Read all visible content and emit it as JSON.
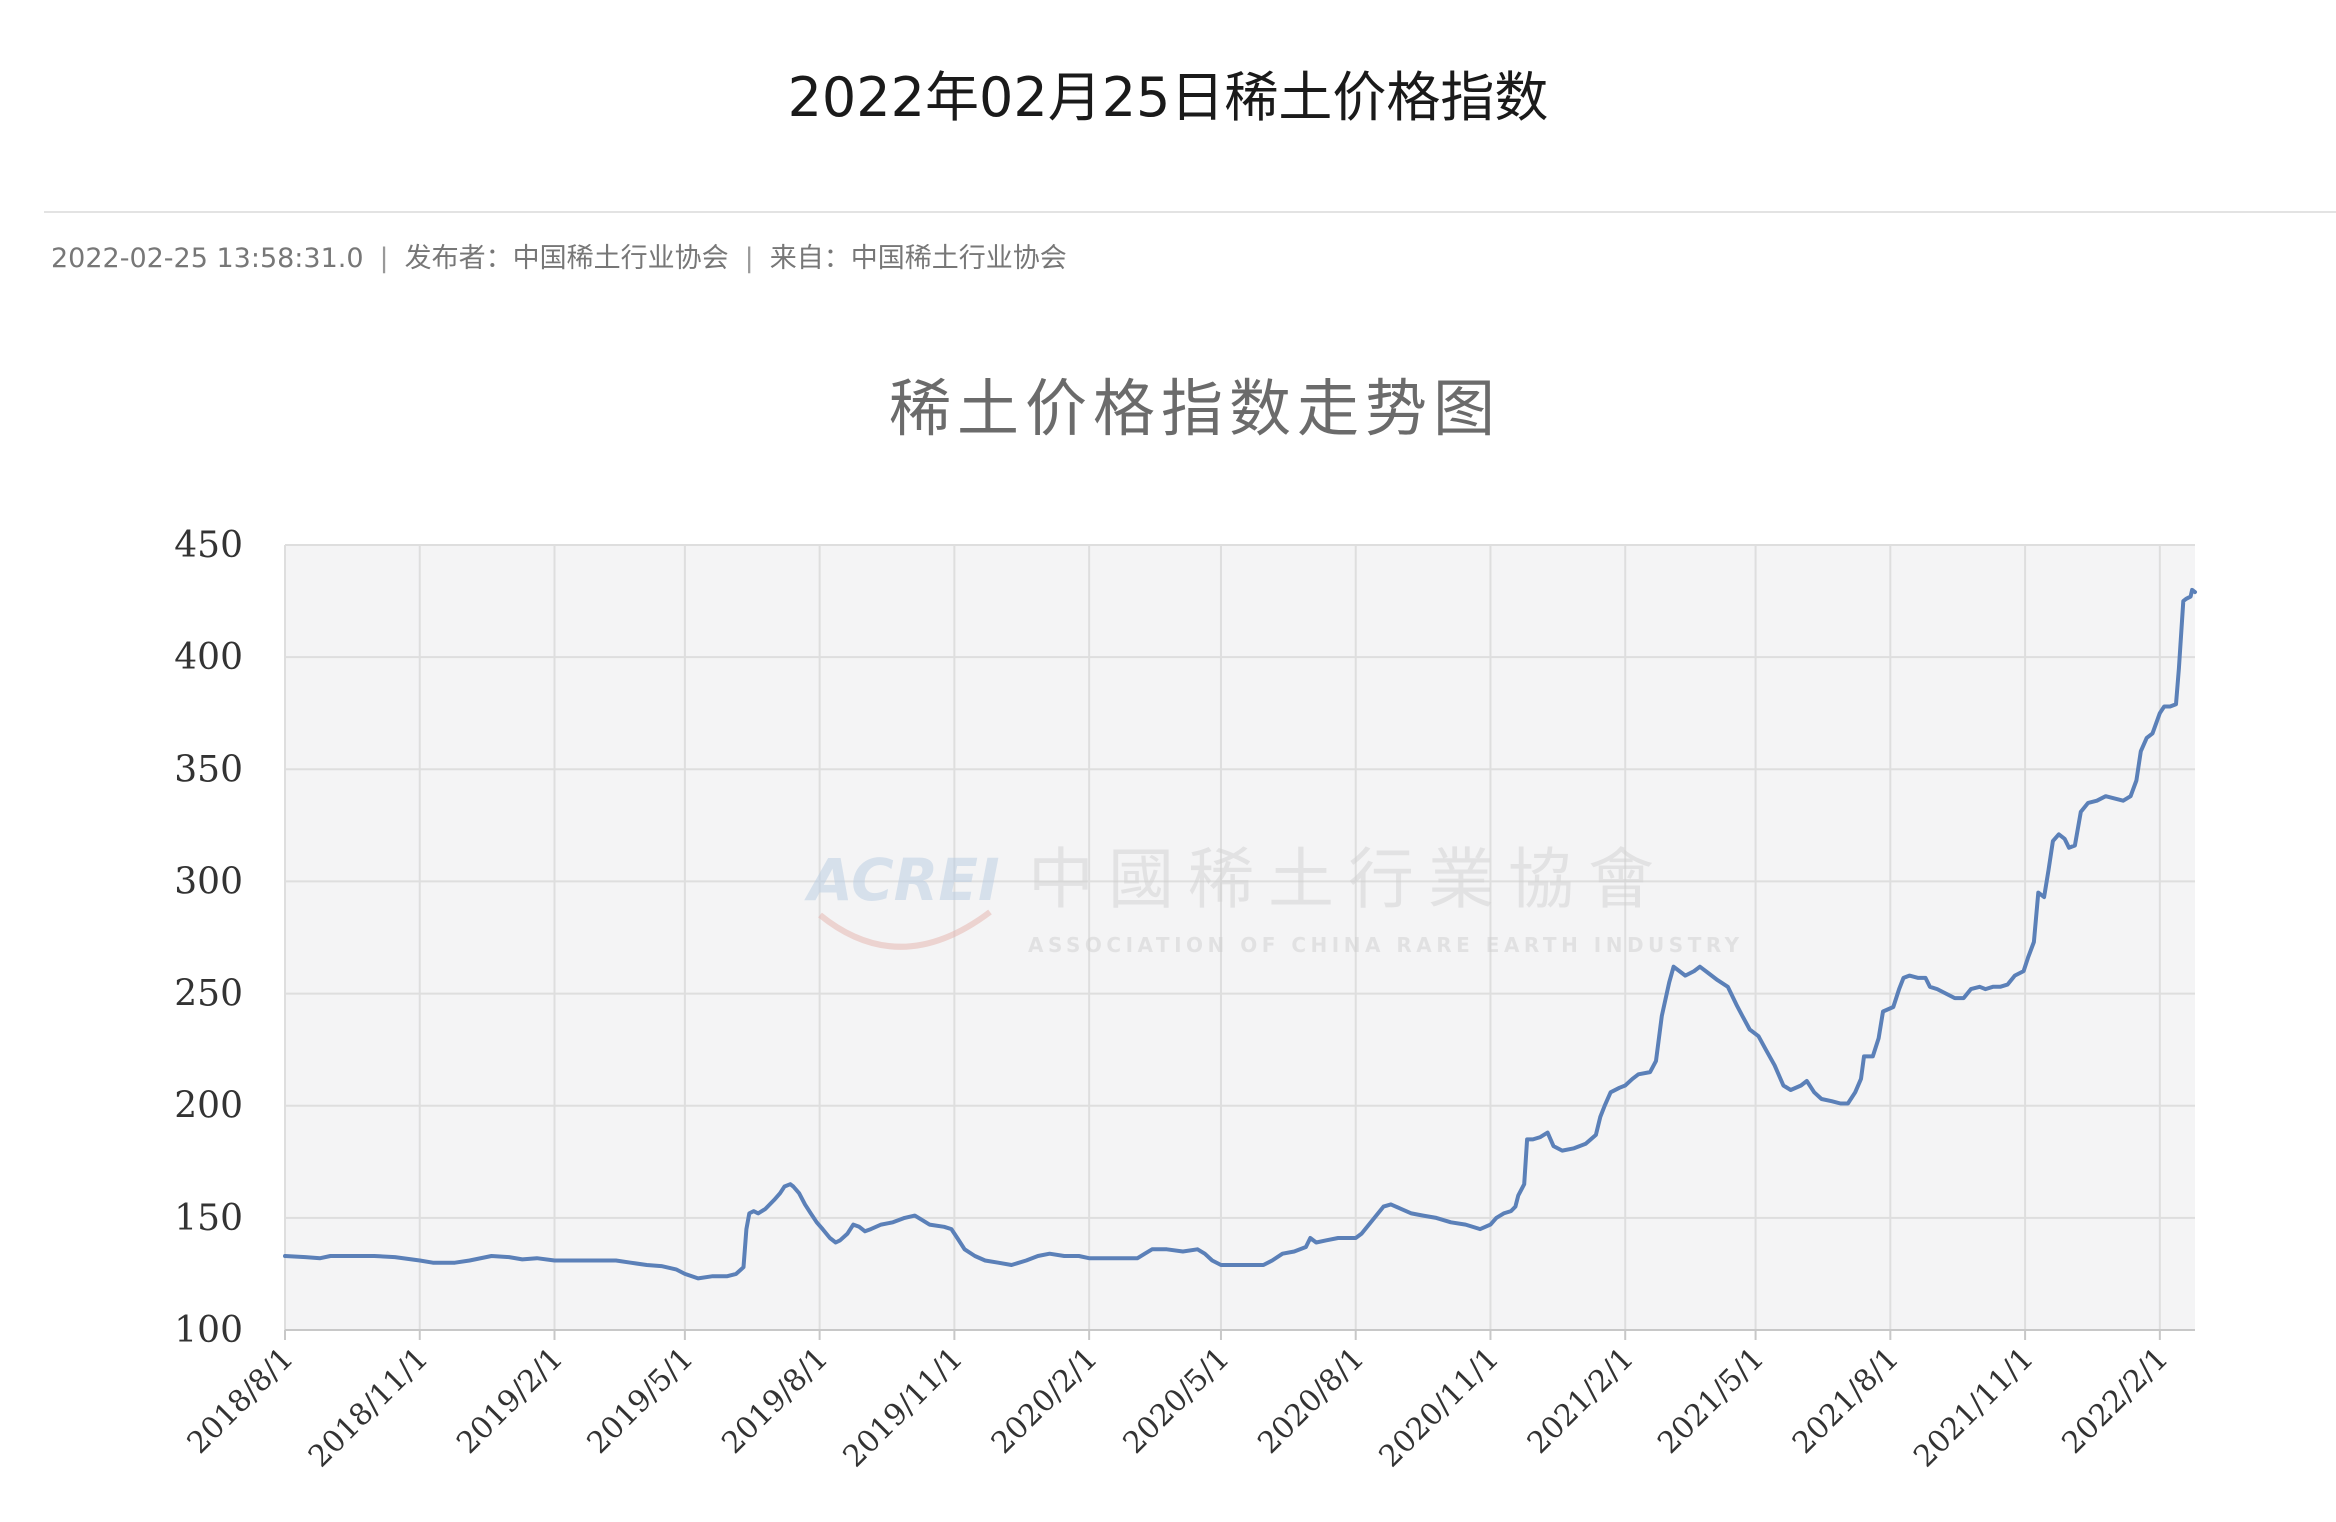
{
  "article": {
    "title": "2022年02月25日稀土价格指数",
    "timestamp": "2022-02-25 13:58:31.0",
    "publisher": "发布者：中国稀土行业协会",
    "source": "来自：中国稀土行业协会",
    "separator": "|"
  },
  "watermark": {
    "logo_text": "ACREI",
    "name_cn": "中國稀土行業協會",
    "name_en": "ASSOCIATION OF CHINA RARE EARTH INDUSTRY"
  },
  "chart_data": {
    "type": "line",
    "title": "稀土价格指数走势图",
    "xlabel": "",
    "ylabel": "",
    "ylim": [
      100,
      450
    ],
    "yticks": [
      100,
      150,
      200,
      250,
      300,
      350,
      400,
      450
    ],
    "xlim": [
      "2018-08-01",
      "2022-02-25"
    ],
    "xticks": [
      "2018/8/1",
      "2018/11/1",
      "2019/2/1",
      "2019/5/1",
      "2019/8/1",
      "2019/11/1",
      "2020/2/1",
      "2020/5/1",
      "2020/8/1",
      "2020/11/1",
      "2021/2/1",
      "2021/5/1",
      "2021/8/1",
      "2021/11/1",
      "2022/2/1"
    ],
    "grid": true,
    "legend": "none",
    "line_color": "#5b80b8",
    "plot_bg": "#f4f4f5",
    "series": [
      {
        "points": [
          [
            "2018-08-01",
            133
          ],
          [
            "2018-08-15",
            132.5
          ],
          [
            "2018-08-25",
            132
          ],
          [
            "2018-09-01",
            133
          ],
          [
            "2018-09-15",
            133
          ],
          [
            "2018-10-01",
            133
          ],
          [
            "2018-10-15",
            132.5
          ],
          [
            "2018-11-01",
            131
          ],
          [
            "2018-11-10",
            130
          ],
          [
            "2018-11-25",
            130
          ],
          [
            "2018-12-05",
            131
          ],
          [
            "2018-12-20",
            133
          ],
          [
            "2019-01-01",
            132.5
          ],
          [
            "2019-01-10",
            131.5
          ],
          [
            "2019-01-20",
            132
          ],
          [
            "2019-02-01",
            131
          ],
          [
            "2019-02-15",
            131
          ],
          [
            "2019-03-01",
            131
          ],
          [
            "2019-03-15",
            131
          ],
          [
            "2019-03-25",
            130
          ],
          [
            "2019-04-05",
            129
          ],
          [
            "2019-04-15",
            128.5
          ],
          [
            "2019-04-25",
            127
          ],
          [
            "2019-05-01",
            125
          ],
          [
            "2019-05-10",
            123
          ],
          [
            "2019-05-20",
            124
          ],
          [
            "2019-05-30",
            124
          ],
          [
            "2019-06-05",
            125
          ],
          [
            "2019-06-10",
            128
          ],
          [
            "2019-06-12",
            145
          ],
          [
            "2019-06-14",
            152
          ],
          [
            "2019-06-17",
            153
          ],
          [
            "2019-06-20",
            152
          ],
          [
            "2019-06-25",
            154
          ],
          [
            "2019-07-01",
            158
          ],
          [
            "2019-07-05",
            161
          ],
          [
            "2019-07-08",
            164
          ],
          [
            "2019-07-12",
            165
          ],
          [
            "2019-07-14",
            164
          ],
          [
            "2019-07-18",
            161
          ],
          [
            "2019-07-22",
            156
          ],
          [
            "2019-07-26",
            152
          ],
          [
            "2019-07-30",
            148
          ],
          [
            "2019-08-03",
            145
          ],
          [
            "2019-08-08",
            141
          ],
          [
            "2019-08-12",
            139
          ],
          [
            "2019-08-15",
            140
          ],
          [
            "2019-08-20",
            143
          ],
          [
            "2019-08-24",
            147
          ],
          [
            "2019-08-28",
            146
          ],
          [
            "2019-09-01",
            144
          ],
          [
            "2019-09-05",
            145
          ],
          [
            "2019-09-12",
            147
          ],
          [
            "2019-09-20",
            148
          ],
          [
            "2019-09-28",
            150
          ],
          [
            "2019-10-05",
            151
          ],
          [
            "2019-10-10",
            149
          ],
          [
            "2019-10-15",
            147
          ],
          [
            "2019-10-25",
            146
          ],
          [
            "2019-10-30",
            145
          ],
          [
            "2019-11-03",
            141
          ],
          [
            "2019-11-08",
            136
          ],
          [
            "2019-11-15",
            133
          ],
          [
            "2019-11-22",
            131
          ],
          [
            "2019-12-01",
            130
          ],
          [
            "2019-12-10",
            129
          ],
          [
            "2019-12-20",
            131
          ],
          [
            "2019-12-28",
            133
          ],
          [
            "2020-01-05",
            134
          ],
          [
            "2020-01-15",
            133
          ],
          [
            "2020-01-25",
            133
          ],
          [
            "2020-02-01",
            132
          ],
          [
            "2020-02-15",
            132
          ],
          [
            "2020-02-25",
            132
          ],
          [
            "2020-03-05",
            132
          ],
          [
            "2020-03-10",
            134
          ],
          [
            "2020-03-15",
            136
          ],
          [
            "2020-03-25",
            136
          ],
          [
            "2020-04-05",
            135
          ],
          [
            "2020-04-15",
            136
          ],
          [
            "2020-04-20",
            134
          ],
          [
            "2020-04-25",
            131
          ],
          [
            "2020-05-01",
            129
          ],
          [
            "2020-05-10",
            129
          ],
          [
            "2020-05-20",
            129
          ],
          [
            "2020-05-30",
            129
          ],
          [
            "2020-06-05",
            131
          ],
          [
            "2020-06-12",
            134
          ],
          [
            "2020-06-20",
            135
          ],
          [
            "2020-06-28",
            137
          ],
          [
            "2020-07-01",
            141
          ],
          [
            "2020-07-05",
            139
          ],
          [
            "2020-07-12",
            140
          ],
          [
            "2020-07-20",
            141
          ],
          [
            "2020-07-28",
            141
          ],
          [
            "2020-08-01",
            141
          ],
          [
            "2020-08-05",
            143
          ],
          [
            "2020-08-10",
            147
          ],
          [
            "2020-08-15",
            151
          ],
          [
            "2020-08-20",
            155
          ],
          [
            "2020-08-25",
            156
          ],
          [
            "2020-09-01",
            154
          ],
          [
            "2020-09-08",
            152
          ],
          [
            "2020-09-16",
            151
          ],
          [
            "2020-09-25",
            150
          ],
          [
            "2020-10-05",
            148
          ],
          [
            "2020-10-15",
            147
          ],
          [
            "2020-10-25",
            145
          ],
          [
            "2020-11-01",
            147
          ],
          [
            "2020-11-05",
            150
          ],
          [
            "2020-11-10",
            152
          ],
          [
            "2020-11-15",
            153
          ],
          [
            "2020-11-18",
            155
          ],
          [
            "2020-11-20",
            160
          ],
          [
            "2020-11-24",
            165
          ],
          [
            "2020-11-26",
            185
          ],
          [
            "2020-11-30",
            185
          ],
          [
            "2020-12-05",
            186
          ],
          [
            "2020-12-10",
            188
          ],
          [
            "2020-12-14",
            182
          ],
          [
            "2020-12-20",
            180
          ],
          [
            "2020-12-28",
            181
          ],
          [
            "2021-01-05",
            183
          ],
          [
            "2021-01-12",
            187
          ],
          [
            "2021-01-15",
            195
          ],
          [
            "2021-01-18",
            200
          ],
          [
            "2021-01-22",
            206
          ],
          [
            "2021-01-28",
            208
          ],
          [
            "2021-02-01",
            209
          ],
          [
            "2021-02-06",
            212
          ],
          [
            "2021-02-10",
            214
          ],
          [
            "2021-02-18",
            215
          ],
          [
            "2021-02-22",
            220
          ],
          [
            "2021-02-26",
            240
          ],
          [
            "2021-03-03",
            255
          ],
          [
            "2021-03-06",
            262
          ],
          [
            "2021-03-10",
            260
          ],
          [
            "2021-03-14",
            258
          ],
          [
            "2021-03-20",
            260
          ],
          [
            "2021-03-24",
            262
          ],
          [
            "2021-03-30",
            259
          ],
          [
            "2021-04-05",
            256
          ],
          [
            "2021-04-12",
            253
          ],
          [
            "2021-04-18",
            245
          ],
          [
            "2021-04-22",
            240
          ],
          [
            "2021-04-27",
            234
          ],
          [
            "2021-05-03",
            231
          ],
          [
            "2021-05-08",
            225
          ],
          [
            "2021-05-14",
            218
          ],
          [
            "2021-05-20",
            209
          ],
          [
            "2021-05-25",
            207
          ],
          [
            "2021-06-01",
            209
          ],
          [
            "2021-06-05",
            211
          ],
          [
            "2021-06-10",
            206
          ],
          [
            "2021-06-15",
            203
          ],
          [
            "2021-06-22",
            202
          ],
          [
            "2021-06-28",
            201
          ],
          [
            "2021-07-03",
            201
          ],
          [
            "2021-07-08",
            206
          ],
          [
            "2021-07-12",
            212
          ],
          [
            "2021-07-14",
            222
          ],
          [
            "2021-07-20",
            222
          ],
          [
            "2021-07-24",
            230
          ],
          [
            "2021-07-27",
            242
          ],
          [
            "2021-08-03",
            244
          ],
          [
            "2021-08-07",
            252
          ],
          [
            "2021-08-10",
            257
          ],
          [
            "2021-08-14",
            258
          ],
          [
            "2021-08-20",
            257
          ],
          [
            "2021-08-25",
            257
          ],
          [
            "2021-08-28",
            253
          ],
          [
            "2021-09-02",
            252
          ],
          [
            "2021-09-08",
            250
          ],
          [
            "2021-09-14",
            248
          ],
          [
            "2021-09-20",
            248
          ],
          [
            "2021-09-25",
            252
          ],
          [
            "2021-10-01",
            253
          ],
          [
            "2021-10-05",
            252
          ],
          [
            "2021-10-10",
            253
          ],
          [
            "2021-10-15",
            253
          ],
          [
            "2021-10-20",
            254
          ],
          [
            "2021-10-25",
            258
          ],
          [
            "2021-10-31",
            260
          ],
          [
            "2021-11-03",
            266
          ],
          [
            "2021-11-07",
            273
          ],
          [
            "2021-11-10",
            295
          ],
          [
            "2021-11-14",
            293
          ],
          [
            "2021-11-17",
            305
          ],
          [
            "2021-11-20",
            318
          ],
          [
            "2021-11-24",
            321
          ],
          [
            "2021-11-28",
            319
          ],
          [
            "2021-12-01",
            315
          ],
          [
            "2021-12-05",
            316
          ],
          [
            "2021-12-09",
            331
          ],
          [
            "2021-12-14",
            335
          ],
          [
            "2021-12-20",
            336
          ],
          [
            "2021-12-26",
            338
          ],
          [
            "2022-01-01",
            337
          ],
          [
            "2022-01-07",
            336
          ],
          [
            "2022-01-12",
            338
          ],
          [
            "2022-01-16",
            345
          ],
          [
            "2022-01-19",
            358
          ],
          [
            "2022-01-23",
            364
          ],
          [
            "2022-01-27",
            366
          ],
          [
            "2022-02-01",
            375
          ],
          [
            "2022-02-04",
            378
          ],
          [
            "2022-02-08",
            378
          ],
          [
            "2022-02-12",
            379
          ],
          [
            "2022-02-14",
            395
          ],
          [
            "2022-02-17",
            425
          ],
          [
            "2022-02-19",
            426
          ],
          [
            "2022-02-22",
            427
          ],
          [
            "2022-02-23",
            430
          ],
          [
            "2022-02-25",
            429
          ]
        ]
      }
    ]
  }
}
